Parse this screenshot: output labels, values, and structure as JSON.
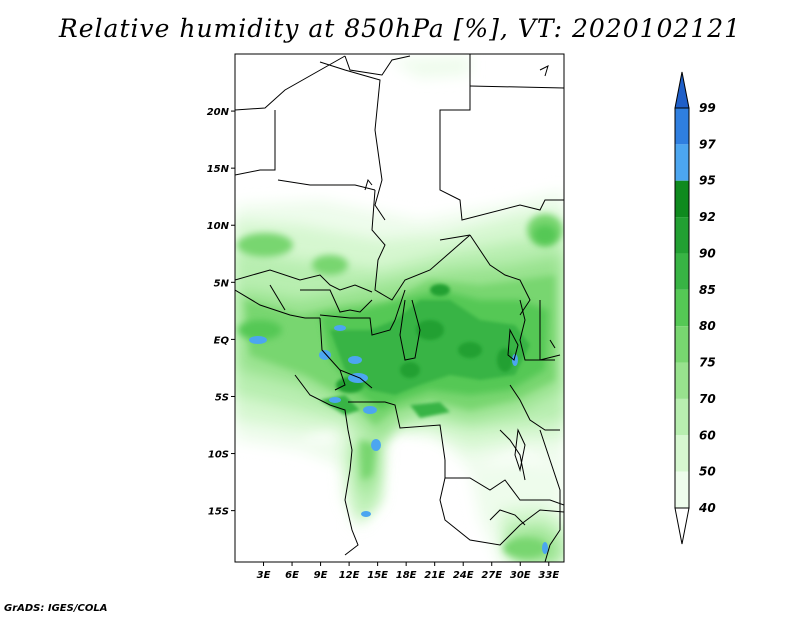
{
  "title": "Relative humidity at 850hPa [%], VT: 2020102121",
  "footer": "GrADS: IGES/COLA",
  "map": {
    "lon_range": [
      0,
      34.6
    ],
    "lat_range": [
      -19.5,
      25
    ],
    "lat_ticks": [
      {
        "value": 20,
        "label": "20N"
      },
      {
        "value": 15,
        "label": "15N"
      },
      {
        "value": 10,
        "label": "10N"
      },
      {
        "value": 5,
        "label": "5N"
      },
      {
        "value": 0,
        "label": "EQ"
      },
      {
        "value": -5,
        "label": "5S"
      },
      {
        "value": -10,
        "label": "10S"
      },
      {
        "value": -15,
        "label": "15S"
      }
    ],
    "lon_ticks": [
      {
        "value": 3,
        "label": "3E"
      },
      {
        "value": 6,
        "label": "6E"
      },
      {
        "value": 9,
        "label": "9E"
      },
      {
        "value": 12,
        "label": "12E"
      },
      {
        "value": 15,
        "label": "15E"
      },
      {
        "value": 18,
        "label": "18E"
      },
      {
        "value": 21,
        "label": "21E"
      },
      {
        "value": 24,
        "label": "24E"
      },
      {
        "value": 27,
        "label": "27E"
      },
      {
        "value": 30,
        "label": "30E"
      },
      {
        "value": 33,
        "label": "33E"
      }
    ]
  },
  "colorbar": {
    "levels": [
      "99",
      "97",
      "95",
      "92",
      "90",
      "85",
      "80",
      "75",
      "70",
      "60",
      "50",
      "40"
    ],
    "colors": [
      "#1f5fc8",
      "#2f7fe0",
      "#4ca6f0",
      "#0f8a1e",
      "#22a032",
      "#38b444",
      "#55c855",
      "#78d670",
      "#98e28e",
      "#b8eeb0",
      "#d6f7d0",
      "#eefcec",
      "#ffffff"
    ]
  }
}
